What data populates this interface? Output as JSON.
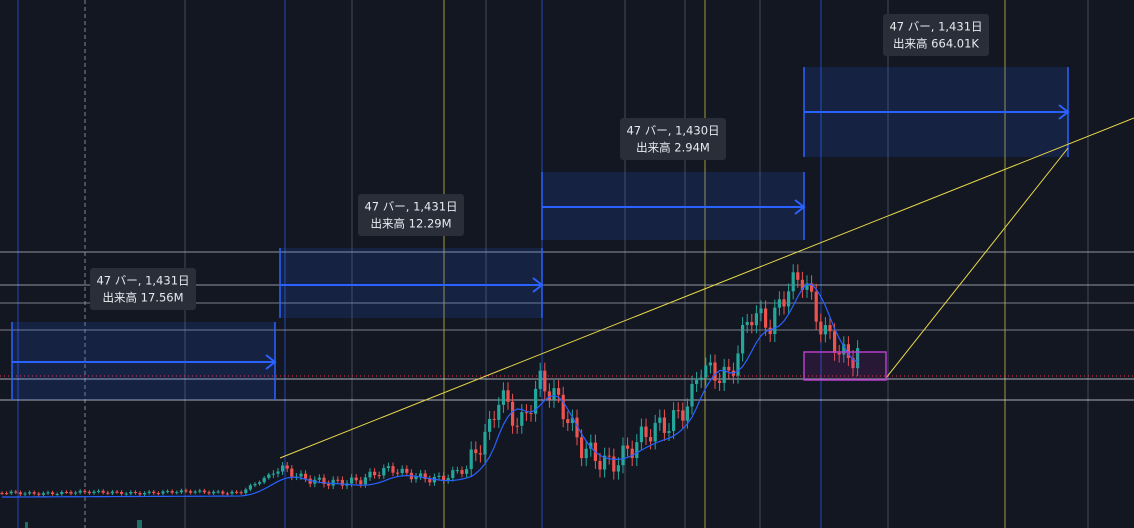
{
  "annotations": [
    {
      "bars": "47 バー, 1,431日",
      "volume": "出来高 17.56M"
    },
    {
      "bars": "47 バー, 1,431日",
      "volume": "出来高 12.29M"
    },
    {
      "bars": "47 バー, 1,430日",
      "volume": "出来高 2.94M"
    },
    {
      "bars": "47 バー, 1,431日",
      "volume": "出来高 664.01K"
    }
  ]
}
